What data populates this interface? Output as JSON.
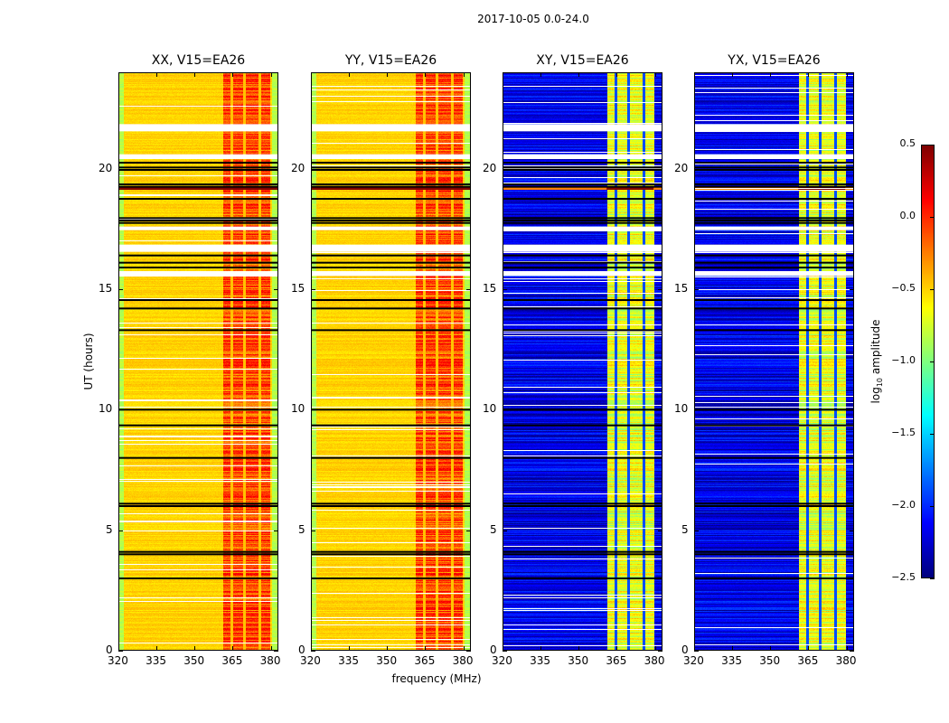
{
  "chart_data": {
    "type": "heatmap",
    "title": "2017-10-05 0.0-24.0",
    "xlabel": "frequency (MHz)",
    "ylabel": "UT (hours)",
    "xlim": [
      320,
      383
    ],
    "ylim": [
      0,
      24
    ],
    "xticks": [
      320,
      335,
      350,
      365,
      380
    ],
    "yticks": [
      0,
      5,
      10,
      15,
      20
    ],
    "panels": [
      {
        "title": "XX, V15=EA26",
        "pol": "parallel"
      },
      {
        "title": "YY, V15=EA26",
        "pol": "parallel"
      },
      {
        "title": "XY, V15=EA26",
        "pol": "cross"
      },
      {
        "title": "YX, V15=EA26",
        "pol": "cross"
      }
    ],
    "colorbar": {
      "label_prefix": "log",
      "label_sub": "10",
      "label_suffix": " amplitude",
      "range": [
        -2.5,
        0.5
      ],
      "ticks": [
        "0.5",
        "0.0",
        "−0.5",
        "−1.0",
        "−1.5",
        "−2.0",
        "−2.5"
      ],
      "tick_values": [
        0.5,
        0.0,
        -0.5,
        -1.0,
        -1.5,
        -2.0,
        -2.5
      ],
      "colormap": "jet"
    },
    "signal_band_mhz": [
      361,
      379.5
    ],
    "band_gaps_mhz": [
      364.5,
      369.5,
      375.5
    ],
    "level_parallel": {
      "off_band": -0.5,
      "in_band": -0.1
    },
    "level_cross": {
      "off_band": -2.2,
      "in_band": -0.7
    },
    "flagged_white_hours": [
      [
        21.55,
        21.85
      ],
      [
        20.4,
        20.6
      ],
      [
        17.45,
        17.6
      ],
      [
        16.55,
        16.85
      ],
      [
        15.55,
        15.75
      ]
    ],
    "black_line_hours": [
      20.25,
      20.05,
      19.95,
      19.35,
      19.25,
      18.75,
      17.95,
      17.85,
      17.75,
      16.4,
      16.1,
      15.9,
      14.55,
      14.2,
      13.3,
      10.0,
      9.35,
      8.0,
      6.1,
      6.0,
      4.1,
      4.0,
      3.0
    ],
    "red_row_hours": [
      19.2
    ]
  }
}
